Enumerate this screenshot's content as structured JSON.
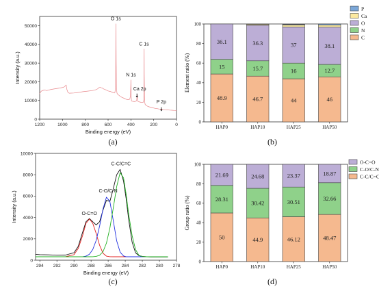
{
  "chart_data": [
    {
      "panel": "(a)",
      "type": "line",
      "xlabel": "Binding energy (eV)",
      "ylabel": "Intensity (a.u.)",
      "xlim": [
        1200,
        0
      ],
      "ylim": [
        0,
        55000
      ],
      "x_ticks": [
        "1200",
        "1000",
        "800",
        "600",
        "400",
        "200",
        "0"
      ],
      "y_ticks": [
        "0",
        "10000",
        "20000",
        "30000",
        "40000",
        "50000"
      ],
      "color": "#e8868a",
      "x": [
        1200,
        1195,
        1190,
        1180,
        1170,
        1160,
        1150,
        1140,
        1100,
        1060,
        1020,
        990,
        975,
        968,
        962,
        955,
        950,
        940,
        900,
        860,
        820,
        780,
        740,
        720,
        700,
        690,
        680,
        670,
        660,
        650,
        640,
        620,
        600,
        580,
        560,
        545,
        540,
        536,
        533,
        531,
        529,
        526,
        522,
        515,
        505,
        495,
        480,
        460,
        440,
        420,
        410,
        404,
        401,
        400,
        399,
        397,
        395,
        390,
        380,
        370,
        360,
        350,
        348,
        346,
        344,
        342,
        340,
        330,
        310,
        295,
        290,
        287,
        286,
        285,
        284.5,
        284,
        283,
        281,
        279,
        275,
        265,
        250,
        230,
        210,
        190,
        170,
        150,
        140,
        135,
        133,
        130,
        120,
        100,
        80,
        60,
        40,
        20,
        0
      ],
      "y": [
        13500,
        14200,
        14700,
        15200,
        15400,
        15600,
        15500,
        15300,
        15900,
        16300,
        16700,
        17100,
        17800,
        18300,
        16000,
        14800,
        14100,
        13900,
        14000,
        14300,
        14700,
        15000,
        15300,
        15500,
        15900,
        16300,
        16900,
        17100,
        16800,
        16600,
        16200,
        15700,
        15100,
        14800,
        14300,
        14000,
        14300,
        16500,
        28000,
        51000,
        30000,
        16500,
        13900,
        13200,
        12800,
        12300,
        11700,
        11200,
        10600,
        10400,
        10700,
        12500,
        18000,
        21000,
        17500,
        12000,
        9800,
        9600,
        9500,
        9400,
        9500,
        9900,
        10800,
        12800,
        13000,
        10700,
        9600,
        9300,
        9000,
        8900,
        9200,
        10500,
        13000,
        20000,
        33000,
        37500,
        24000,
        12000,
        9200,
        7900,
        7300,
        6800,
        6400,
        6100,
        5800,
        5600,
        5400,
        5300,
        5450,
        5700,
        5400,
        5150,
        5050,
        4950,
        4850,
        4750,
        4650,
        4600
      ],
      "annotations": [
        "O 1s",
        "N 1s",
        "C 1s",
        "Ca 2p",
        "P 2p"
      ]
    },
    {
      "panel": "(b)",
      "type": "bar",
      "stacked": true,
      "xlabel": "",
      "ylabel": "Element ratio (%)",
      "ylim": [
        0,
        100
      ],
      "y_ticks": [
        "0",
        "20",
        "40",
        "60",
        "80",
        "100"
      ],
      "categories": [
        "HAP0",
        "HAP10",
        "HAP25",
        "HAP50"
      ],
      "series": [
        {
          "name": "C",
          "color": "#f5b98f",
          "values": [
            48.9,
            46.7,
            44,
            46
          ],
          "labels": [
            "48.9",
            "46.7",
            "44",
            "46"
          ]
        },
        {
          "name": "N",
          "color": "#8fd18a",
          "values": [
            15,
            15.7,
            16,
            12.7
          ],
          "labels": [
            "15",
            "15.7",
            "16",
            "12.7"
          ]
        },
        {
          "name": "O",
          "color": "#bcaed6",
          "values": [
            36.1,
            36.3,
            37,
            38.1
          ],
          "labels": [
            "36.1",
            "36.3",
            "37",
            "38.1"
          ]
        },
        {
          "name": "Ca",
          "color": "#fbe9a0",
          "values": [
            0,
            1.1,
            1.9,
            2.1
          ],
          "labels": [
            "",
            "",
            "",
            ""
          ]
        },
        {
          "name": "P",
          "color": "#7ba7d8",
          "values": [
            0,
            0.2,
            0.6,
            1.1
          ],
          "labels": [
            "",
            "",
            "",
            ""
          ]
        }
      ],
      "legend": "top-right"
    },
    {
      "panel": "(c)",
      "type": "line",
      "xlabel": "Binding energy (eV)",
      "ylabel": "Intensity (a.u.)",
      "xlim": [
        294.5,
        278
      ],
      "ylim": [
        0,
        10000
      ],
      "x_ticks": [
        "294",
        "292",
        "290",
        "288",
        "286",
        "284",
        "282",
        "280",
        "278"
      ],
      "y_ticks": [
        "0",
        "2000",
        "4000",
        "6000",
        "8000",
        "10000"
      ],
      "annotations": [
        "O-C=O",
        "C-O/C-N",
        "C-C/C=C"
      ],
      "x": [
        294.5,
        294,
        293,
        292,
        291,
        290,
        289.5,
        289,
        288.6,
        288.2,
        287.8,
        287.4,
        287,
        286.6,
        286.2,
        285.8,
        285.4,
        285,
        284.6,
        284.2,
        283.9,
        283.6,
        283.2,
        282.8,
        282.4,
        282,
        281.5,
        281,
        280.5,
        280,
        279.5,
        279
      ],
      "series": [
        {
          "name": "",
          "color": "#111111",
          "values": [
            550,
            520,
            500,
            470,
            480,
            700,
            1300,
            2600,
            3600,
            3900,
            3600,
            3300,
            3600,
            4700,
            5600,
            5500,
            6700,
            8000,
            8500,
            7400,
            5800,
            3800,
            1700,
            700,
            420,
            360,
            320,
            300,
            300,
            300,
            300,
            300
          ]
        },
        {
          "name": "",
          "color": "#e02020",
          "values": [
            320,
            320,
            320,
            320,
            330,
            520,
            1100,
            2300,
            3450,
            3850,
            3450,
            2500,
            1400,
            650,
            380,
            330,
            320,
            320,
            320,
            320,
            320,
            320,
            320,
            320,
            320,
            320,
            320,
            320,
            320,
            320,
            320,
            320
          ]
        },
        {
          "name": "",
          "color": "#2030e0",
          "values": [
            320,
            320,
            320,
            320,
            320,
            320,
            320,
            330,
            380,
            560,
            1000,
            1850,
            3200,
            4800,
            5900,
            5500,
            3700,
            1800,
            750,
            400,
            330,
            320,
            320,
            320,
            320,
            320,
            320,
            320,
            320,
            320,
            320,
            320
          ]
        },
        {
          "name": "",
          "color": "#20b020",
          "values": [
            320,
            320,
            320,
            320,
            320,
            320,
            320,
            320,
            320,
            320,
            330,
            360,
            460,
            800,
            1600,
            3000,
            4900,
            6900,
            8200,
            7700,
            6200,
            4300,
            2300,
            1000,
            450,
            340,
            320,
            320,
            320,
            320,
            320,
            320
          ]
        }
      ]
    },
    {
      "panel": "(d)",
      "type": "bar",
      "stacked": true,
      "xlabel": "",
      "ylabel": "Group ratio (%)",
      "ylim": [
        0,
        100
      ],
      "y_ticks": [
        "0",
        "20",
        "40",
        "60",
        "80",
        "100"
      ],
      "categories": [
        "HAP0",
        "HAP10",
        "HAP25",
        "HAP50"
      ],
      "series": [
        {
          "name": "C-C/C=C",
          "color": "#f5b98f",
          "values": [
            50,
            44.9,
            46.12,
            48.47
          ],
          "labels": [
            "50",
            "44.9",
            "46.12",
            "48.47"
          ]
        },
        {
          "name": "C-O/C-N",
          "color": "#8fd18a",
          "values": [
            28.31,
            30.42,
            30.51,
            32.66
          ],
          "labels": [
            "28.31",
            "30.42",
            "30.51",
            "32.66"
          ]
        },
        {
          "name": "O-C=O",
          "color": "#bcaed6",
          "values": [
            21.69,
            24.68,
            23.37,
            18.87
          ],
          "labels": [
            "21.69",
            "24.68",
            "23.37",
            "18.87"
          ]
        }
      ],
      "legend": "top-right"
    }
  ],
  "panel_labels": [
    "(a)",
    "(b)",
    "(c)",
    "(d)"
  ]
}
